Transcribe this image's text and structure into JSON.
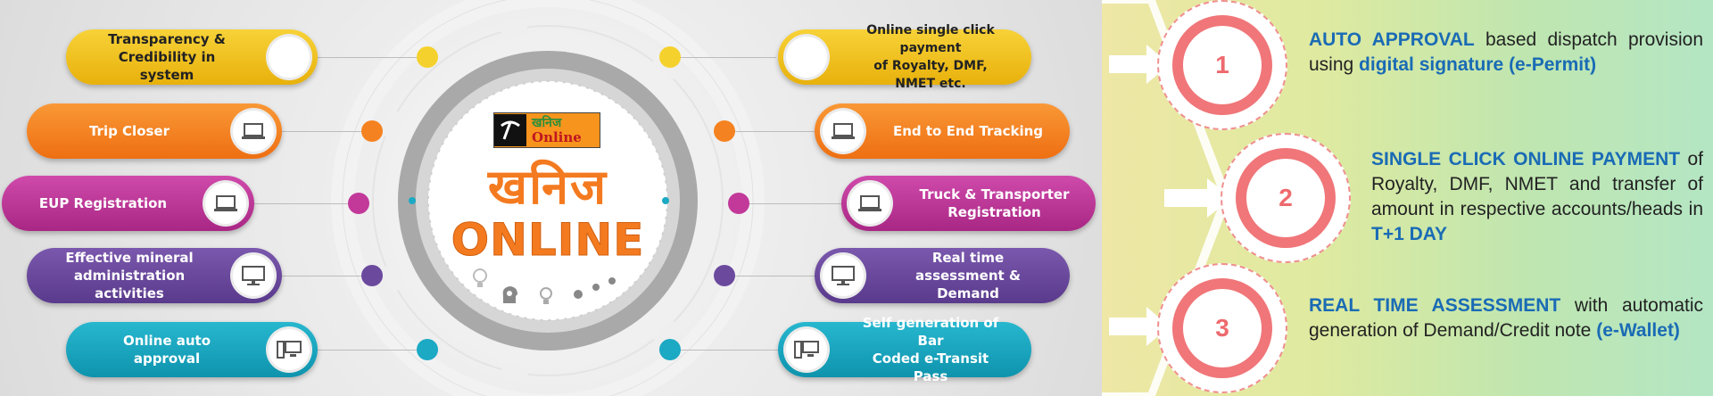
{
  "left_features": [
    {
      "text": "Transparency &\nCredibility in system",
      "icon": "blank-circle-icon"
    },
    {
      "text": "Trip Closer",
      "icon": "laptop-icon"
    },
    {
      "text": "EUP Registration",
      "icon": "laptop-icon"
    },
    {
      "text": "Effective mineral\nadministration activities",
      "icon": "monitor-icon"
    },
    {
      "text": "Online auto approval",
      "icon": "computer-icon"
    }
  ],
  "right_features": [
    {
      "text": "Online single click payment\nof Royalty, DMF, NMET etc.",
      "icon": "blank-circle-icon"
    },
    {
      "text": "End to End Tracking",
      "icon": "laptop-icon"
    },
    {
      "text": "Truck & Transporter\nRegistration",
      "icon": "laptop-icon"
    },
    {
      "text": "Real time assessment &\nDemand",
      "icon": "monitor-icon"
    },
    {
      "text": "Self generation of Bar\nCoded e-Transit Pass",
      "icon": "computer-icon"
    }
  ],
  "center": {
    "logo_top": "खनिज",
    "logo_bottom": "Online",
    "main_hindi": "खनिज",
    "main_en": "ONLINE"
  },
  "colors": {
    "yellow": "#f1c414",
    "orange": "#f58220",
    "magenta": "#c2399a",
    "purple": "#6b4a9e",
    "teal": "#1ba9c4",
    "accent_blue": "#1a6bb5",
    "ring_red": "#f07679"
  },
  "steps": [
    {
      "number": "1",
      "parts": [
        {
          "b": true,
          "t": "AUTO APPROVAL"
        },
        {
          "b": false,
          "t": " based dispatch provision using "
        },
        {
          "b": true,
          "t": "digital signature (e-Permit)"
        }
      ]
    },
    {
      "number": "2",
      "parts": [
        {
          "b": true,
          "t": "SINGLE CLICK ONLINE PAYMENT"
        },
        {
          "b": false,
          "t": " of Royalty, DMF, NMET and transfer of amount in respective accounts/heads in "
        },
        {
          "b": true,
          "t": "T+1 DAY"
        }
      ]
    },
    {
      "number": "3",
      "parts": [
        {
          "b": true,
          "t": "REAL TIME ASSESSMENT"
        },
        {
          "b": false,
          "t": " with automatic generation of Demand/Credit note "
        },
        {
          "b": true,
          "t": "(e-Wallet)"
        }
      ]
    }
  ]
}
